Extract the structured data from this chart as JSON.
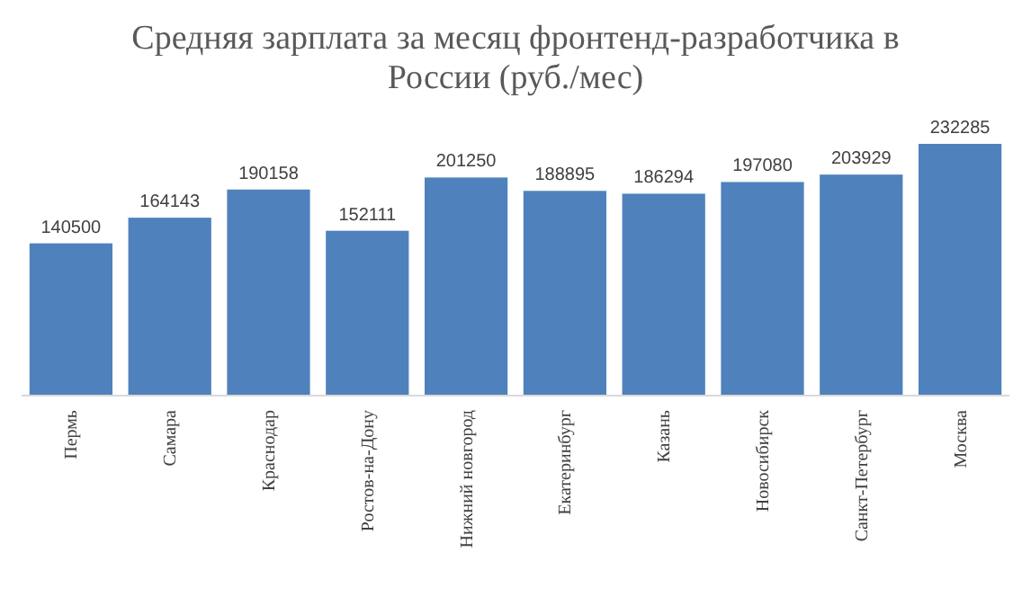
{
  "chart_data": {
    "type": "bar",
    "title": "Средняя зарплата за месяц фронтенд-разработчика в России (руб./мес)",
    "categories": [
      "Пермь",
      "Самара",
      "Краснодар",
      "Ростов-на-Дону",
      "Нижний новгород",
      "Екатеринбург",
      "Казань",
      "Новосибирск",
      "Санкт-Петербург",
      "Москва"
    ],
    "values": [
      140500,
      164143,
      190158,
      152111,
      201250,
      188895,
      186294,
      197080,
      203929,
      232285
    ],
    "color": "#4f81bd",
    "data_labels": true
  }
}
